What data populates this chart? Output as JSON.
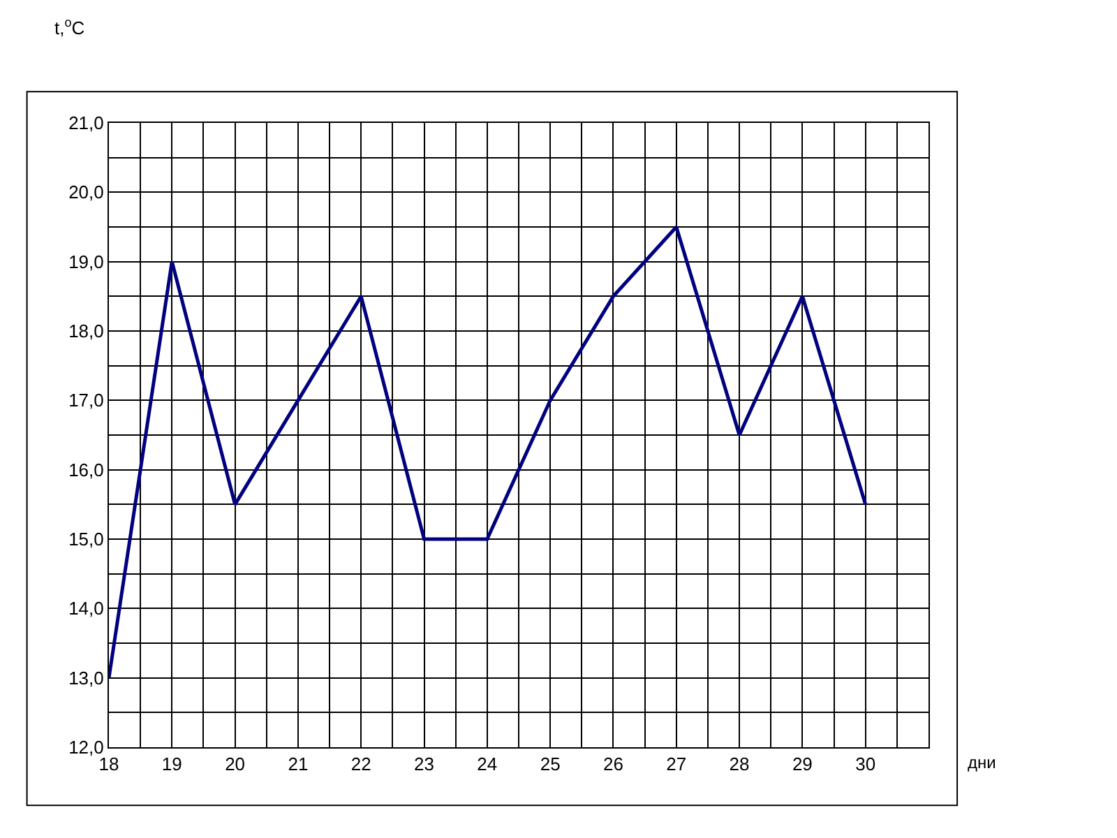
{
  "chart_data": {
    "type": "line",
    "xlabel": "дни",
    "ylabel": "t,$^{o}$C",
    "x": [
      18,
      19,
      20,
      21,
      22,
      23,
      24,
      25,
      26,
      27,
      28,
      29,
      30
    ],
    "series": [
      {
        "color": "#000080",
        "values": [
          13,
          19,
          15.5,
          17,
          18.5,
          15,
          15,
          17,
          18.5,
          19.5,
          16.5,
          18.5,
          15.5
        ]
      }
    ],
    "xlim": [
      18,
      31
    ],
    "xticks": [
      18,
      {
        "value": 18.5,
        "label": null
      },
      19,
      {
        "value": 19.5,
        "label": null
      },
      20,
      {
        "value": 20.5,
        "label": null
      },
      21,
      {
        "value": 21.5,
        "label": null
      },
      22,
      {
        "value": 22.5,
        "label": null
      },
      23,
      {
        "value": 23.5,
        "label": null
      },
      24,
      {
        "value": 24.5,
        "label": null
      },
      25,
      {
        "value": 25.5,
        "label": null
      },
      26,
      {
        "value": 26.5,
        "label": null
      },
      27,
      {
        "value": 27.5,
        "label": null
      },
      28,
      {
        "value": 28.5,
        "label": null
      },
      29,
      {
        "value": 29.5,
        "label": null
      },
      30,
      {
        "value": 30.5,
        "label": null
      },
      {
        "value": 31,
        "label": null
      }
    ],
    "ylim": [
      12,
      21
    ],
    "yticks": [
      {
        "value": 12,
        "label": "12,0"
      },
      {
        "value": 12.5,
        "label": null
      },
      {
        "value": 13,
        "label": "13,0"
      },
      {
        "value": 13.5,
        "label": null
      },
      {
        "value": 14,
        "label": "14,0"
      },
      {
        "value": 14.5,
        "label": null
      },
      {
        "value": 15,
        "label": "15,0"
      },
      {
        "value": 15.5,
        "label": null
      },
      {
        "value": 16,
        "label": "16,0"
      },
      {
        "value": 16.5,
        "label": null
      },
      {
        "value": 17,
        "label": "17,0"
      },
      {
        "value": 17.5,
        "label": null
      },
      {
        "value": 18,
        "label": "18,0"
      },
      {
        "value": 18.5,
        "label": null
      },
      {
        "value": 19,
        "label": "19,0"
      },
      {
        "value": 19.5,
        "label": null
      },
      {
        "value": 20,
        "label": "20,0"
      },
      {
        "value": 20.5,
        "label": null
      },
      {
        "value": 21,
        "label": "21,0"
      }
    ],
    "grid": true,
    "line_style": "solid",
    "marker": "none"
  }
}
